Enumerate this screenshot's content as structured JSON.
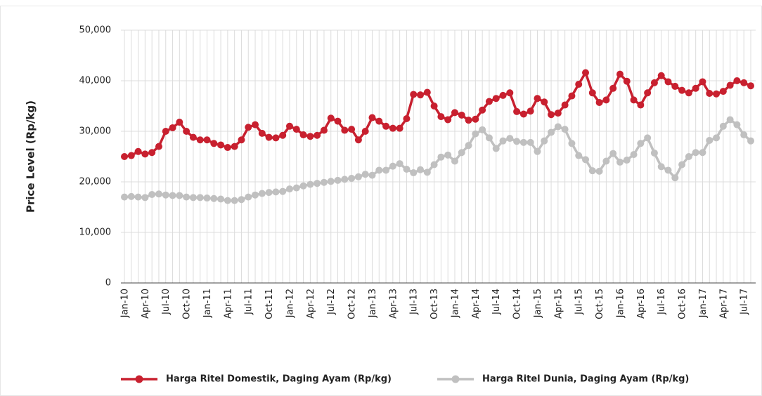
{
  "chart_data": {
    "type": "line",
    "y_label": "Price Level (Rp/kg)",
    "categories": [
      "Jan-10",
      null,
      null,
      "Apr-10",
      null,
      null,
      "Jul-10",
      null,
      null,
      "Oct-10",
      null,
      null,
      "Jan-11",
      null,
      null,
      "Apr-11",
      null,
      null,
      "Jul-11",
      null,
      null,
      "Oct-11",
      null,
      null,
      "Jan-12",
      null,
      null,
      "Apr-12",
      null,
      null,
      "Jul-12",
      null,
      null,
      "Oct-12",
      null,
      null,
      "Jan-13",
      null,
      null,
      "Apr-13",
      null,
      null,
      "Jul-13",
      null,
      null,
      "Oct-13",
      null,
      null,
      "Jan-14",
      null,
      null,
      "Apr-14",
      null,
      null,
      "Jul-14",
      null,
      null,
      "Oct-14",
      null,
      null,
      "Jan-15",
      null,
      null,
      "Apr-15",
      null,
      null,
      "Jul-15",
      null,
      null,
      "Oct-15",
      null,
      null,
      "Jan-16",
      null,
      null,
      "Apr-16",
      null,
      null,
      "Jul-16",
      null,
      null,
      "Oct-16",
      null,
      null,
      "Jan-17",
      null,
      null,
      "Apr-17",
      null,
      null,
      "Jul-17",
      null
    ],
    "series": [
      {
        "name": "Harga Ritel Domestik, Daging Ayam (Rp/kg)",
        "color": "#c8202f",
        "values": [
          25000,
          25200,
          26000,
          25500,
          25800,
          27000,
          30000,
          30700,
          31800,
          30000,
          28800,
          28300,
          28300,
          27600,
          27300,
          26800,
          27000,
          28300,
          30800,
          31300,
          29600,
          28800,
          28700,
          29200,
          31000,
          30400,
          29300,
          29000,
          29200,
          30200,
          32600,
          32000,
          30200,
          30400,
          28300,
          30000,
          32700,
          32000,
          31000,
          30600,
          30600,
          32500,
          37300,
          37200,
          37700,
          35000,
          32900,
          32300,
          33700,
          33200,
          32200,
          32400,
          34200,
          35900,
          36500,
          37100,
          37600,
          33900,
          33400,
          34000,
          36500,
          35800,
          33300,
          33600,
          35200,
          37000,
          39300,
          41600,
          37600,
          35700,
          36200,
          38500,
          41300,
          39900,
          36200,
          35200,
          37600,
          39600,
          41000,
          39800,
          38900,
          38100,
          37600,
          38500,
          39800,
          37500,
          37400,
          37900,
          39100,
          40000,
          39600,
          39000
        ]
      },
      {
        "name": "Harga Ritel Dunia, Daging Ayam (Rp/kg)",
        "color": "#c0c0c0",
        "values": [
          17000,
          17100,
          17000,
          16900,
          17500,
          17600,
          17400,
          17300,
          17300,
          17000,
          16900,
          16900,
          16800,
          16700,
          16600,
          16300,
          16300,
          16500,
          17000,
          17400,
          17700,
          17900,
          18000,
          18100,
          18600,
          18800,
          19200,
          19500,
          19700,
          19900,
          20100,
          20300,
          20500,
          20700,
          21000,
          21500,
          21300,
          22300,
          22300,
          23100,
          23600,
          22500,
          21800,
          22400,
          21900,
          23400,
          24900,
          25300,
          24100,
          25800,
          27200,
          29500,
          30300,
          28700,
          26600,
          28100,
          28600,
          28000,
          27800,
          27800,
          26000,
          28100,
          29800,
          30900,
          30400,
          27600,
          25200,
          24400,
          22200,
          22100,
          24100,
          25600,
          23900,
          24300,
          25400,
          27600,
          28700,
          25700,
          23000,
          22300,
          20800,
          23400,
          25000,
          25800,
          25800,
          28200,
          28700,
          31000,
          32300,
          31300,
          29300,
          28100
        ]
      }
    ],
    "ylim": [
      0,
      50000
    ],
    "yticks": [
      0,
      {
        "value": 10000,
        "label": "10,000"
      },
      {
        "value": 20000,
        "label": "20,000"
      },
      {
        "value": 30000,
        "label": "30,000"
      },
      {
        "value": 40000,
        "label": "40,000"
      },
      {
        "value": 50000,
        "label": "50,000"
      }
    ],
    "grid": true
  }
}
